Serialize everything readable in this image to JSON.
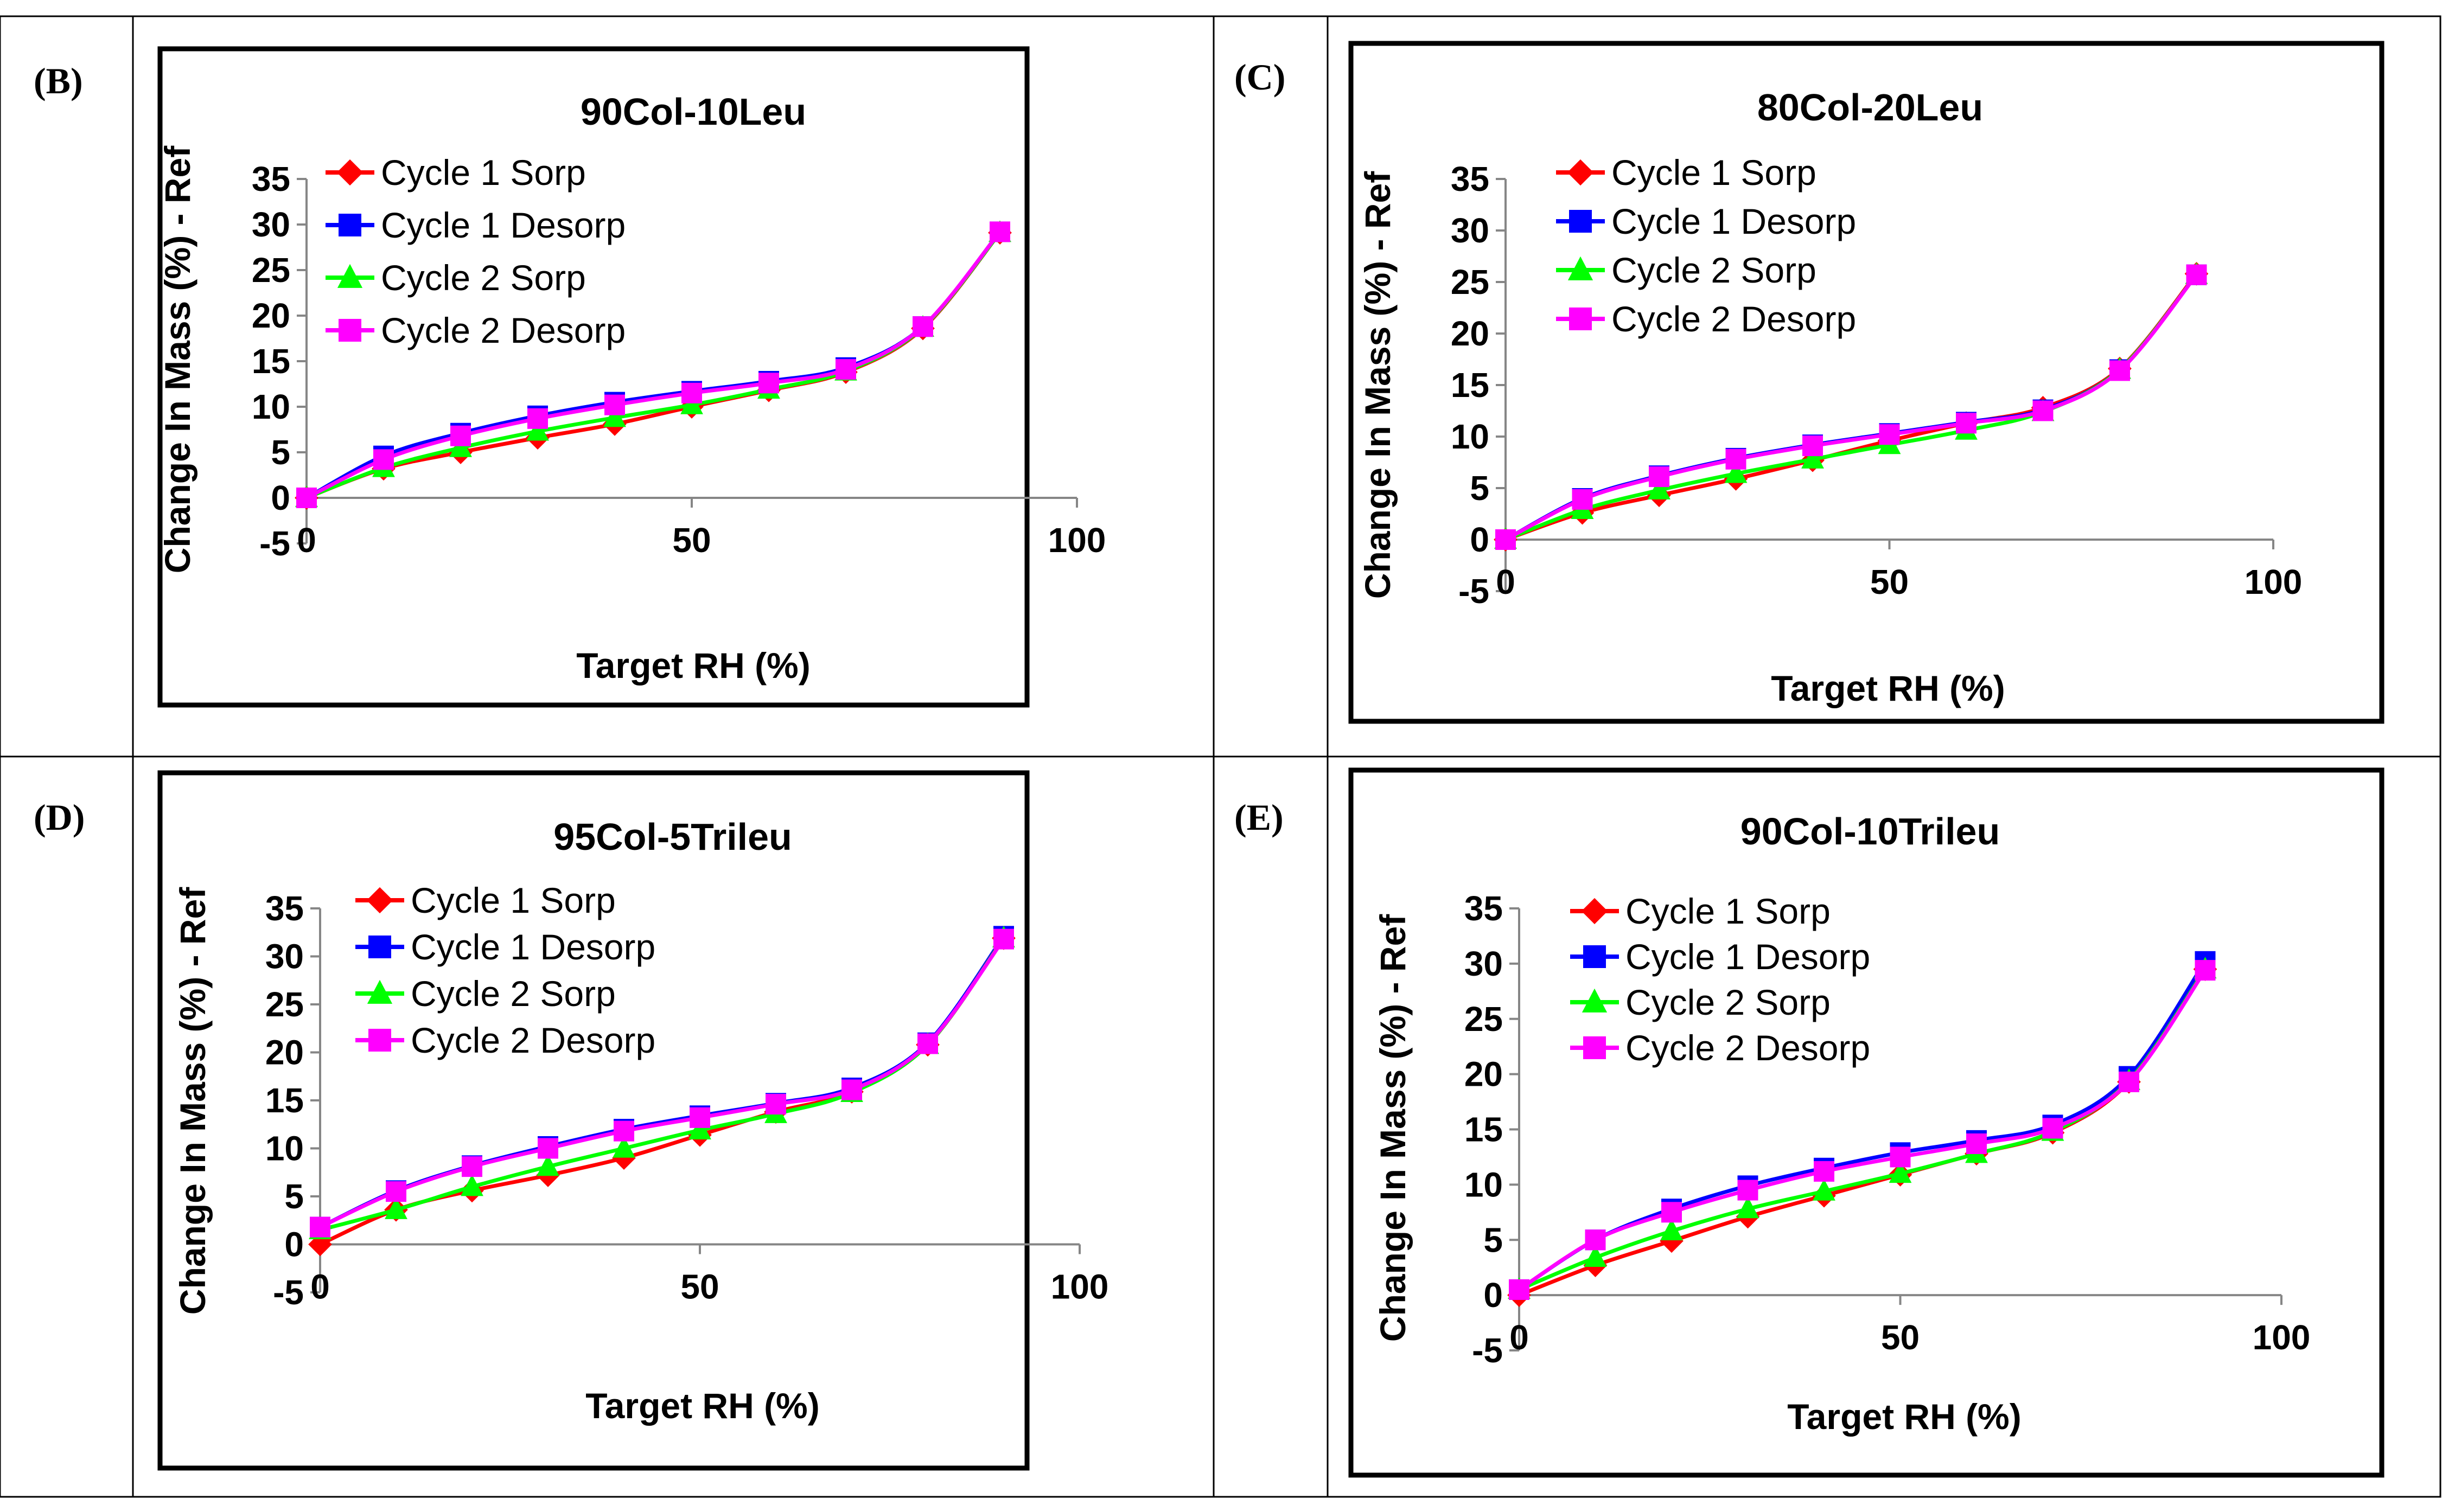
{
  "figure": {
    "colors": {
      "cycle1_sorp": "#ff0000",
      "cycle1_desorp": "#0000ff",
      "cycle2_sorp": "#00ff00",
      "cycle2_desorp": "#ff00ff"
    }
  },
  "chart_data": [
    {
      "panel_label": "(B)",
      "type": "line",
      "title": "90Col-10Leu",
      "xlabel": "Target RH (%)",
      "ylabel": "Change In Mass (%) - Ref",
      "xlim": [
        0,
        100
      ],
      "ylim": [
        -5,
        35
      ],
      "xticks": [
        "0",
        "50",
        "100"
      ],
      "yticks": [
        "-5",
        "0",
        "5",
        "10",
        "15",
        "20",
        "25",
        "30",
        "35"
      ],
      "legend_position": "top-left",
      "series": [
        {
          "name": "Cycle 1 Sorp",
          "marker": "diamond",
          "x": [
            0,
            10,
            20,
            30,
            40,
            50,
            60,
            70,
            80,
            90
          ],
          "values": [
            0,
            3.2,
            5.0,
            6.6,
            8.1,
            10.0,
            11.8,
            13.8,
            18.6,
            29.1
          ]
        },
        {
          "name": "Cycle 1 Desorp",
          "marker": "square",
          "x": [
            0,
            10,
            20,
            30,
            40,
            50,
            60,
            70,
            80,
            90
          ],
          "values": [
            0,
            4.6,
            7.1,
            9.0,
            10.5,
            11.7,
            12.8,
            14.3,
            18.8,
            29.2
          ]
        },
        {
          "name": "Cycle 2 Sorp",
          "marker": "triangle",
          "x": [
            0,
            10,
            20,
            30,
            40,
            50,
            60,
            70,
            80,
            90
          ],
          "values": [
            0,
            3.3,
            5.5,
            7.3,
            8.8,
            10.2,
            11.9,
            13.9,
            18.7,
            29.1
          ]
        },
        {
          "name": "Cycle 2 Desorp",
          "marker": "square",
          "x": [
            0,
            10,
            20,
            30,
            40,
            50,
            60,
            70,
            80,
            90
          ],
          "values": [
            0,
            4.2,
            6.8,
            8.7,
            10.2,
            11.5,
            12.6,
            14.1,
            18.8,
            29.2
          ]
        }
      ]
    },
    {
      "panel_label": "(C)",
      "type": "line",
      "title": "80Col-20Leu",
      "xlabel": "Target RH (%)",
      "ylabel": "Change In Mass (%) - Ref",
      "xlim": [
        0,
        100
      ],
      "ylim": [
        -5,
        35
      ],
      "xticks": [
        "0",
        "50",
        "100"
      ],
      "yticks": [
        "-5",
        "0",
        "5",
        "10",
        "15",
        "20",
        "25",
        "30",
        "35"
      ],
      "legend_position": "top-left",
      "series": [
        {
          "name": "Cycle 1 Sorp",
          "marker": "diamond",
          "x": [
            0,
            10,
            20,
            30,
            40,
            50,
            60,
            70,
            80,
            90
          ],
          "values": [
            0,
            2.6,
            4.3,
            5.9,
            7.7,
            9.6,
            11.3,
            12.8,
            16.6,
            25.8
          ]
        },
        {
          "name": "Cycle 1 Desorp",
          "marker": "square",
          "x": [
            0,
            10,
            20,
            30,
            40,
            50,
            60,
            70,
            80,
            90
          ],
          "values": [
            0,
            4.0,
            6.2,
            7.9,
            9.2,
            10.3,
            11.4,
            12.6,
            16.5,
            25.7
          ]
        },
        {
          "name": "Cycle 2 Sorp",
          "marker": "triangle",
          "x": [
            0,
            10,
            20,
            30,
            40,
            50,
            60,
            70,
            80,
            90
          ],
          "values": [
            0,
            2.9,
            4.8,
            6.4,
            7.8,
            9.2,
            10.6,
            12.4,
            16.5,
            25.7
          ]
        },
        {
          "name": "Cycle 2 Desorp",
          "marker": "square",
          "x": [
            0,
            10,
            20,
            30,
            40,
            50,
            60,
            70,
            80,
            90
          ],
          "values": [
            0,
            3.9,
            6.1,
            7.8,
            9.1,
            10.2,
            11.3,
            12.5,
            16.4,
            25.7
          ]
        }
      ]
    },
    {
      "panel_label": "(D)",
      "type": "line",
      "title": "95Col-5Trileu",
      "xlabel": "Target RH (%)",
      "ylabel": "Change In Mass (%) - Ref",
      "xlim": [
        0,
        100
      ],
      "ylim": [
        -5,
        35
      ],
      "xticks": [
        "0",
        "50",
        "100"
      ],
      "yticks": [
        "-5",
        "0",
        "5",
        "10",
        "15",
        "20",
        "25",
        "30",
        "35"
      ],
      "legend_position": "top-left",
      "series": [
        {
          "name": "Cycle 1 Sorp",
          "marker": "diamond",
          "x": [
            0,
            10,
            20,
            30,
            40,
            50,
            60,
            70,
            80,
            90
          ],
          "values": [
            0,
            3.6,
            5.6,
            7.2,
            9.0,
            11.4,
            13.8,
            15.9,
            20.8,
            31.9
          ]
        },
        {
          "name": "Cycle 1 Desorp",
          "marker": "square",
          "x": [
            0,
            10,
            20,
            30,
            40,
            50,
            60,
            70,
            80,
            90
          ],
          "values": [
            1.8,
            5.6,
            8.2,
            10.2,
            12.0,
            13.4,
            14.7,
            16.3,
            21.0,
            32.1
          ]
        },
        {
          "name": "Cycle 2 Sorp",
          "marker": "triangle",
          "x": [
            0,
            10,
            20,
            30,
            40,
            50,
            60,
            70,
            80,
            90
          ],
          "values": [
            1.5,
            3.6,
            6.0,
            8.1,
            10.0,
            11.9,
            13.6,
            15.8,
            20.8,
            31.9
          ]
        },
        {
          "name": "Cycle 2 Desorp",
          "marker": "square",
          "x": [
            0,
            10,
            20,
            30,
            40,
            50,
            60,
            70,
            80,
            90
          ],
          "values": [
            1.8,
            5.5,
            8.1,
            10.0,
            11.8,
            13.2,
            14.6,
            16.1,
            20.9,
            31.8
          ]
        }
      ]
    },
    {
      "panel_label": "(E)",
      "type": "line",
      "title": "90Col-10Trileu",
      "xlabel": "Target RH (%)",
      "ylabel": "Change In Mass (%) - Ref",
      "xlim": [
        0,
        100
      ],
      "ylim": [
        -5,
        35
      ],
      "xticks": [
        "0",
        "50",
        "100"
      ],
      "yticks": [
        "-5",
        "0",
        "5",
        "10",
        "15",
        "20",
        "25",
        "30",
        "35"
      ],
      "legend_position": "top-left",
      "series": [
        {
          "name": "Cycle 1 Sorp",
          "marker": "diamond",
          "x": [
            0,
            10,
            20,
            30,
            40,
            50,
            60,
            70,
            80,
            90
          ],
          "values": [
            0,
            2.7,
            4.9,
            7.1,
            9.0,
            10.9,
            12.8,
            14.7,
            19.3,
            29.5
          ]
        },
        {
          "name": "Cycle 1 Desorp",
          "marker": "square",
          "x": [
            0,
            10,
            20,
            30,
            40,
            50,
            60,
            70,
            80,
            90
          ],
          "values": [
            0.5,
            5.0,
            7.8,
            9.9,
            11.5,
            12.9,
            14.0,
            15.4,
            19.8,
            30.2
          ]
        },
        {
          "name": "Cycle 2 Sorp",
          "marker": "triangle",
          "x": [
            0,
            10,
            20,
            30,
            40,
            50,
            60,
            70,
            80,
            90
          ],
          "values": [
            0.5,
            3.4,
            5.8,
            7.8,
            9.4,
            11.0,
            12.8,
            14.8,
            19.4,
            29.5
          ]
        },
        {
          "name": "Cycle 2 Desorp",
          "marker": "square",
          "x": [
            0,
            10,
            20,
            30,
            40,
            50,
            60,
            70,
            80,
            90
          ],
          "values": [
            0.5,
            5.0,
            7.5,
            9.5,
            11.2,
            12.5,
            13.7,
            15.1,
            19.3,
            29.4
          ]
        }
      ]
    }
  ]
}
